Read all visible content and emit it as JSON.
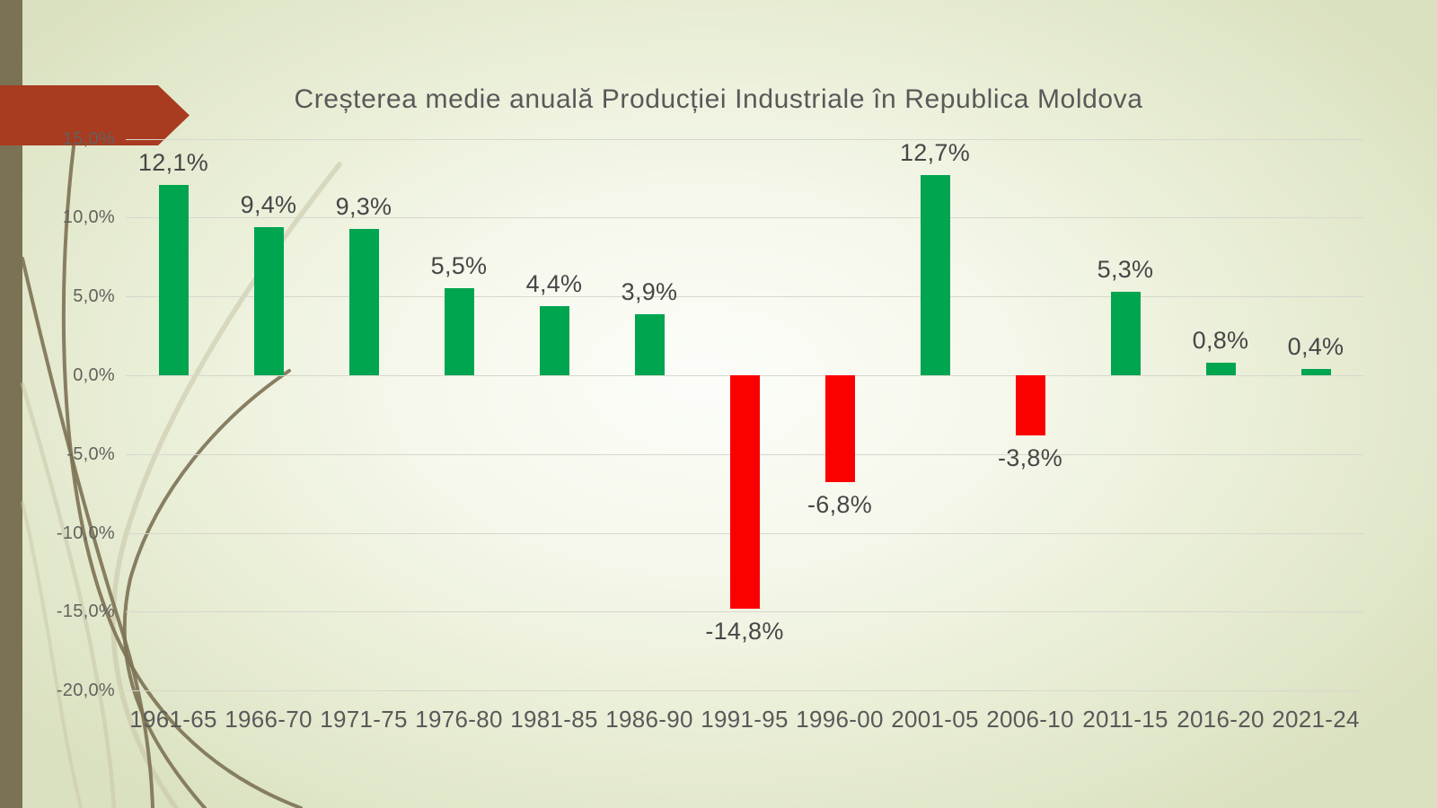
{
  "slide": {
    "title": "Creșterea medie anuală Producției Industriale în Republica Moldova"
  },
  "chart_data": {
    "type": "bar",
    "title": "Creșterea medie anuală Producției Industriale în Republica Moldova",
    "categories": [
      "1961-65",
      "1966-70",
      "1971-75",
      "1976-80",
      "1981-85",
      "1986-90",
      "1991-95",
      "1996-00",
      "2001-05",
      "2006-10",
      "2011-15",
      "2016-20",
      "2021-24"
    ],
    "values": [
      12.1,
      9.4,
      9.3,
      5.5,
      4.4,
      3.9,
      -14.8,
      -6.8,
      12.7,
      -3.8,
      5.3,
      0.8,
      0.4
    ],
    "data_labels": [
      "12,1%",
      "9,4%",
      "9,3%",
      "5,5%",
      "4,4%",
      "3,9%",
      "-14,8%",
      "-6,8%",
      "12,7%",
      "-3,8%",
      "5,3%",
      "0,8%",
      "0,4%"
    ],
    "y_ticks": [
      15,
      10,
      5,
      0,
      -5,
      -10,
      -15,
      -20
    ],
    "y_tick_labels": [
      "15,0%",
      "10,0%",
      "5,0%",
      "0,0%",
      "-5,0%",
      "-10,0%",
      "-15,0%",
      "-20,0%"
    ],
    "ylim": [
      -20,
      15
    ],
    "xlabel": "",
    "ylabel": "",
    "grid": true,
    "legend": "none",
    "positive_color": "#00A550",
    "negative_color": "#FB0000",
    "label_color": "#474747",
    "axis_text_color": "#595959"
  },
  "decor": {
    "sidebar_color": "#7B7254",
    "arrow_color": "#A93B20",
    "curve_dark_color": "#7C7254",
    "curve_light_color": "#C6C3A5"
  }
}
